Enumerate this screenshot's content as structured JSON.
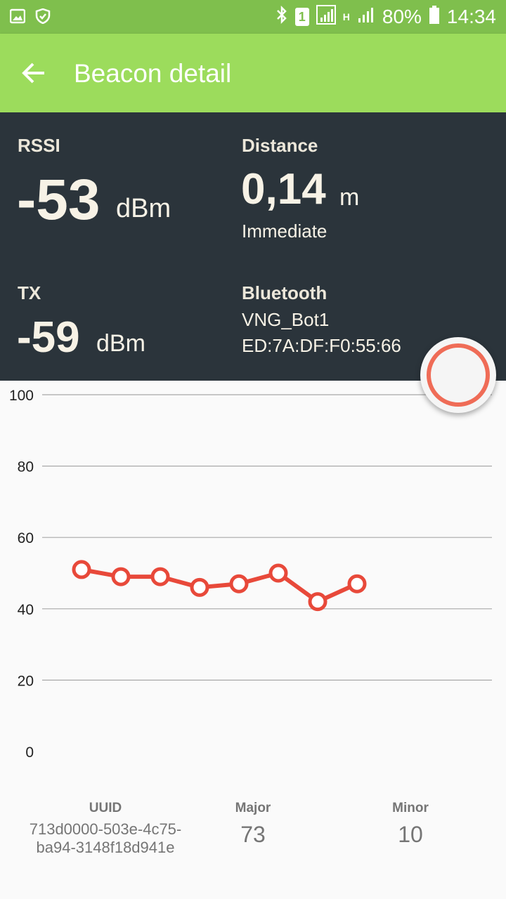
{
  "status_bar": {
    "battery": "80%",
    "time": "14:34",
    "network_h": "H",
    "sim": "1"
  },
  "app_bar": {
    "title": "Beacon detail"
  },
  "rssi": {
    "label": "RSSI",
    "value": "-53",
    "unit": "dBm"
  },
  "distance": {
    "label": "Distance",
    "value": "0,14",
    "unit": "m",
    "proximity": "Immediate"
  },
  "tx": {
    "label": "TX",
    "value": "-59",
    "unit": "dBm"
  },
  "bluetooth": {
    "label": "Bluetooth",
    "name": "VNG_Bot1",
    "mac": "ED:7A:DF:F0:55:66"
  },
  "chart_data": {
    "type": "line",
    "x": [
      1,
      2,
      3,
      4,
      5,
      6,
      7,
      8
    ],
    "values": [
      51,
      49,
      49,
      46,
      47,
      50,
      42,
      47
    ],
    "ylim": [
      0,
      100
    ],
    "yticks": [
      "100",
      "80",
      "60",
      "40",
      "20",
      "0"
    ],
    "grid": true,
    "color": "#e8493a"
  },
  "details": {
    "uuid_label": "UUID",
    "uuid_value": "713d0000-503e-4c75-ba94-3148f18d941e",
    "major_label": "Major",
    "major_value": "73",
    "minor_label": "Minor",
    "minor_value": "10"
  },
  "colors": {
    "status_bar": "#7fbf4d",
    "app_bar": "#9cdc5c",
    "panel": "#2b343b",
    "accent": "#ef6c57"
  }
}
